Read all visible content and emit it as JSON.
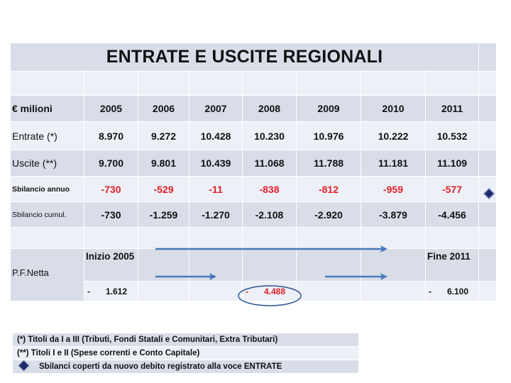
{
  "title": "ENTRATE E USCITE REGIONALI",
  "table": {
    "header": {
      "unit_label": "€ milioni",
      "years": [
        "2005",
        "2006",
        "2007",
        "2008",
        "2009",
        "2010",
        "2011"
      ]
    },
    "rows": [
      {
        "label": "Entrate (*)",
        "values": [
          "8.970",
          "9.272",
          "10.428",
          "10.230",
          "10.976",
          "10.222",
          "10.532"
        ]
      },
      {
        "label": "Uscite  (**)",
        "values": [
          "9.700",
          "9.801",
          "10.439",
          "11.068",
          "11.788",
          "11.181",
          "11.109"
        ]
      },
      {
        "label": "Sbilancio annuo",
        "values": [
          "-730",
          "-529",
          "-11",
          "-838",
          "-812",
          "-959",
          "-577"
        ]
      },
      {
        "label": "Sbilancio cumul.",
        "values": [
          "-730",
          "-1.259",
          "-1.270",
          "-2.108",
          "-2.920",
          "-3.879",
          "-4.456"
        ]
      }
    ],
    "pf_netta": {
      "label": "P.F.Netta",
      "start_label": "Inizio 2005",
      "end_label": "Fine 2011",
      "start": {
        "sign": "-",
        "value": "1.612"
      },
      "mid": {
        "sign": "-",
        "value": "4.488"
      },
      "end": {
        "sign": "-",
        "value": "6.100"
      }
    }
  },
  "notes": [
    "(*)   Titoli da I a III (Tributi, Fondi Statali e Comunitari, Extra Tributari)",
    "(**) Titoli I e II (Spese correnti e Conto Capitale)",
    "Sbilanci coperti da nuovo debito registrato alla voce ENTRATE"
  ],
  "colors": {
    "row_dark": "#d9dde8",
    "row_light": "#edf0f6",
    "negative": "#e0202a",
    "arrow": "#4a78b8",
    "diamond": "#1c2a66"
  },
  "icons": [
    "diamond-marker-icon",
    "arrow-right-icon",
    "highlight-ellipse"
  ]
}
